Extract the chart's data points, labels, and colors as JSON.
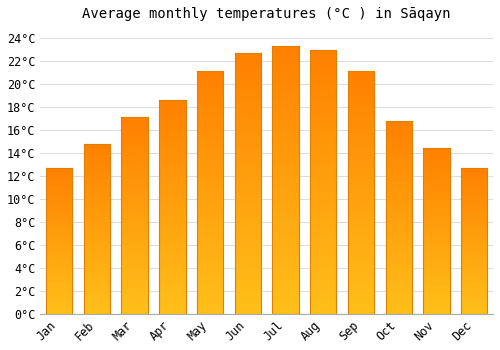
{
  "title": "Average monthly temperatures (°C ) in Sāqayn",
  "months": [
    "Jan",
    "Feb",
    "Mar",
    "Apr",
    "May",
    "Jun",
    "Jul",
    "Aug",
    "Sep",
    "Oct",
    "Nov",
    "Dec"
  ],
  "values": [
    12.7,
    14.8,
    17.1,
    18.6,
    21.1,
    22.7,
    23.3,
    22.9,
    21.1,
    16.8,
    14.4,
    12.7
  ],
  "bar_color_top": "#FFA500",
  "bar_color_bottom": "#FFD060",
  "background_color": "#FFFFFF",
  "grid_color": "#DDDDDD",
  "ylim": [
    0,
    25
  ],
  "ytick_step": 2,
  "title_fontsize": 10,
  "tick_fontsize": 8.5,
  "font_family": "monospace"
}
